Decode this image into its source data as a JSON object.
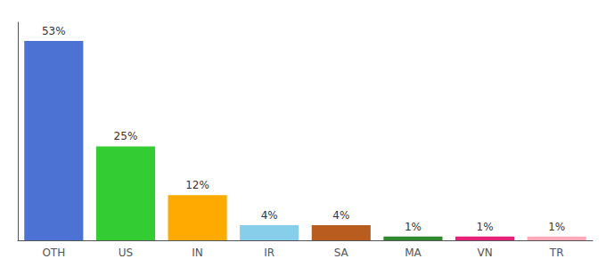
{
  "chart_data": {
    "type": "bar",
    "categories": [
      "OTH",
      "US",
      "IN",
      "IR",
      "SA",
      "MA",
      "VN",
      "TR"
    ],
    "values": [
      53,
      25,
      12,
      4,
      4,
      1,
      1,
      1
    ],
    "value_labels": [
      "53%",
      "25%",
      "12%",
      "4%",
      "4%",
      "1%",
      "1%",
      "1%"
    ],
    "colors": [
      "#4c72d4",
      "#33cc33",
      "#ffaa00",
      "#87ceeb",
      "#b85c20",
      "#2d8a2d",
      "#e8207a",
      "#ffaabb"
    ],
    "ylim": [
      0,
      58
    ],
    "data_labels": true,
    "tick_labels": "x",
    "grid": false
  }
}
